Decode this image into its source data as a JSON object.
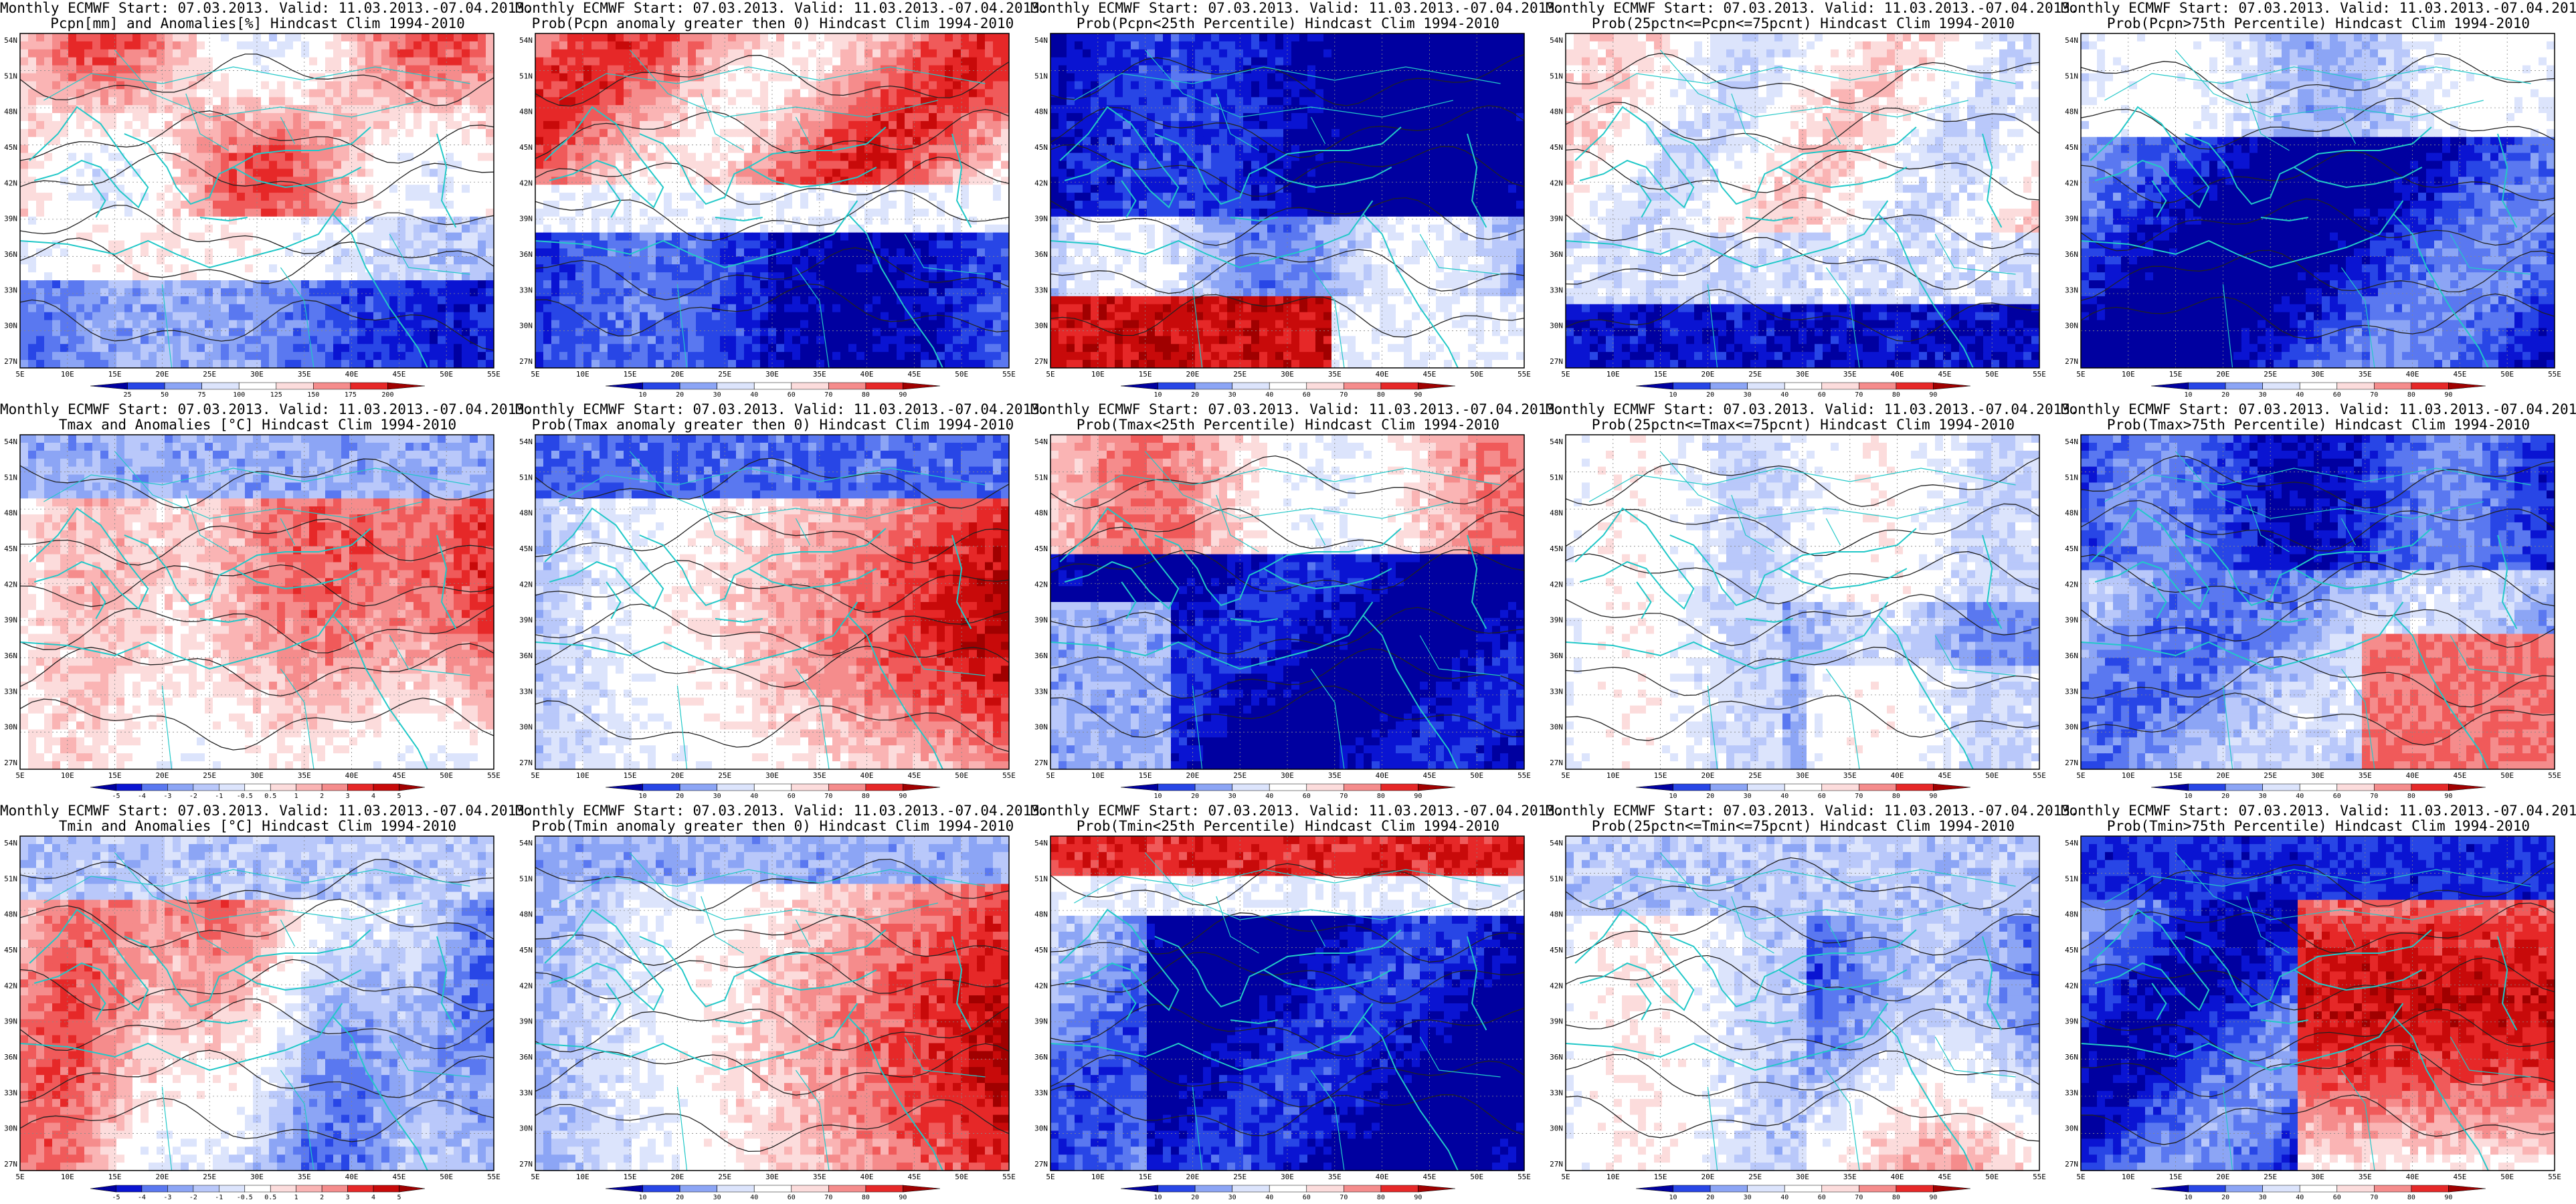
{
  "panels": [
    {
      "title1": "Monthly ECMWF Start: 07.03.2013. Valid: 11.03.2013.-07.04.2013.",
      "title2": "Pcpn[mm] and Anomalies[%] Hindcast Clim 1994-2010",
      "scheme": "precip",
      "colorbar": [
        "25",
        "50",
        "75",
        "100",
        "125",
        "150",
        "175",
        "200"
      ]
    },
    {
      "title1": "Monthly ECMWF Start: 07.03.2013. Valid: 11.03.2013.-07.04.2013.",
      "title2": "Prob(Pcpn anomaly greater then 0) Hindcast Clim 1994-2010",
      "scheme": "prob_pos",
      "colorbar": [
        "10",
        "20",
        "30",
        "40",
        "60",
        "70",
        "80",
        "90"
      ]
    },
    {
      "title1": "Monthly ECMWF Start: 07.03.2013. Valid: 11.03.2013.-07.04.2013.",
      "title2": "Prob(Pcpn<25th Percentile) Hindcast Clim 1994-2010",
      "scheme": "prob_low",
      "colorbar": [
        "10",
        "20",
        "30",
        "40",
        "60",
        "70",
        "80",
        "90"
      ]
    },
    {
      "title1": "Monthly ECMWF Start: 07.03.2013. Valid: 11.03.2013.-07.04.2013.",
      "title2": "Prob(25pctn<=Pcpn<=75pcnt) Hindcast Clim 1994-2010",
      "scheme": "prob_mid",
      "colorbar": [
        "10",
        "20",
        "30",
        "40",
        "60",
        "70",
        "80",
        "90"
      ]
    },
    {
      "title1": "Monthly ECMWF Start: 07.03.2013. Valid: 11.03.2013.-07.04.2013.",
      "title2": "Prob(Pcpn>75th Percentile) Hindcast Clim 1994-2010",
      "scheme": "prob_high",
      "colorbar": [
        "10",
        "20",
        "30",
        "40",
        "60",
        "70",
        "80",
        "90"
      ]
    },
    {
      "title1": "Monthly ECMWF Start: 07.03.2013. Valid: 11.03.2013.-07.04.2013.",
      "title2": "Tmax and Anomalies [°C] Hindcast Clim 1994-2010",
      "scheme": "temp_anom",
      "colorbar": [
        "-5",
        "-4",
        "-3",
        "-2",
        "-1",
        "-0.5",
        "0.5",
        "1",
        "2",
        "3",
        "4",
        "5"
      ]
    },
    {
      "title1": "Monthly ECMWF Start: 07.03.2013. Valid: 11.03.2013.-07.04.2013.",
      "title2": "Prob(Tmax anomaly greater then 0) Hindcast Clim 1994-2010",
      "scheme": "prob_warm",
      "colorbar": [
        "10",
        "20",
        "30",
        "40",
        "60",
        "70",
        "80",
        "90"
      ]
    },
    {
      "title1": "Monthly ECMWF Start: 07.03.2013. Valid: 11.03.2013.-07.04.2013.",
      "title2": "Prob(Tmax<25th Percentile) Hindcast Clim 1994-2010",
      "scheme": "prob_cold",
      "colorbar": [
        "10",
        "20",
        "30",
        "40",
        "60",
        "70",
        "80",
        "90"
      ]
    },
    {
      "title1": "Monthly ECMWF Start: 07.03.2013. Valid: 11.03.2013.-07.04.2013.",
      "title2": "Prob(25pctn<=Tmax<=75pcnt) Hindcast Clim 1994-2010",
      "scheme": "prob_mid2",
      "colorbar": [
        "10",
        "20",
        "30",
        "40",
        "60",
        "70",
        "80",
        "90"
      ]
    },
    {
      "title1": "Monthly ECMWF Start: 07.03.2013. Valid: 11.03.2013.-07.04.2013.",
      "title2": "Prob(Tmax>75th Percentile) Hindcast Clim 1994-2010",
      "scheme": "prob_hot",
      "colorbar": [
        "10",
        "20",
        "30",
        "40",
        "60",
        "70",
        "80",
        "90"
      ]
    },
    {
      "title1": "Monthly ECMWF Start: 07.03.2013. Valid: 11.03.2013.-07.04.2013.",
      "title2": "Tmin and Anomalies [°C] Hindcast Clim 1994-2010",
      "scheme": "temp_anom2",
      "colorbar": [
        "-5",
        "-4",
        "-3",
        "-2",
        "-1",
        "-0.5",
        "0.5",
        "1",
        "2",
        "3",
        "4",
        "5"
      ]
    },
    {
      "title1": "Monthly ECMWF Start: 07.03.2013. Valid: 11.03.2013.-07.04.2013.",
      "title2": "Prob(Tmin anomaly greater then 0) Hindcast Clim 1994-2010",
      "scheme": "prob_warm2",
      "colorbar": [
        "10",
        "20",
        "30",
        "40",
        "60",
        "70",
        "80",
        "90"
      ]
    },
    {
      "title1": "Monthly ECMWF Start: 07.03.2013. Valid: 11.03.2013.-07.04.2013.",
      "title2": "Prob(Tmin<25th Percentile) Hindcast Clim 1994-2010",
      "scheme": "prob_cold2",
      "colorbar": [
        "10",
        "20",
        "30",
        "40",
        "60",
        "70",
        "80",
        "90"
      ]
    },
    {
      "title1": "Monthly ECMWF Start: 07.03.2013. Valid: 11.03.2013.-07.04.2013.",
      "title2": "Prob(25pctn<=Tmin<=75pcnt) Hindcast Clim 1994-2010",
      "scheme": "prob_mid3",
      "colorbar": [
        "10",
        "20",
        "30",
        "40",
        "60",
        "70",
        "80",
        "90"
      ]
    },
    {
      "title1": "Monthly ECMWF Start: 07.03.2013. Valid: 11.03.2013.-07.04.2013.",
      "title2": "Prob(Tmin>75th Percentile) Hindcast Clim 1994-2010",
      "scheme": "prob_hot2",
      "colorbar": [
        "10",
        "20",
        "30",
        "40",
        "60",
        "70",
        "80",
        "90"
      ]
    }
  ],
  "lat_labels": [
    "54N",
    "51N",
    "48N",
    "45N",
    "42N",
    "39N",
    "36N",
    "33N",
    "30N",
    "27N"
  ],
  "lon_labels": [
    "5E",
    "10E",
    "15E",
    "20E",
    "25E",
    "30E",
    "35E",
    "40E",
    "45E",
    "50E",
    "55E"
  ],
  "colors": {
    "coast": "#22c8c8",
    "contour": "#222222",
    "blue_dark": "#0000c8",
    "red_dark": "#c80000"
  }
}
